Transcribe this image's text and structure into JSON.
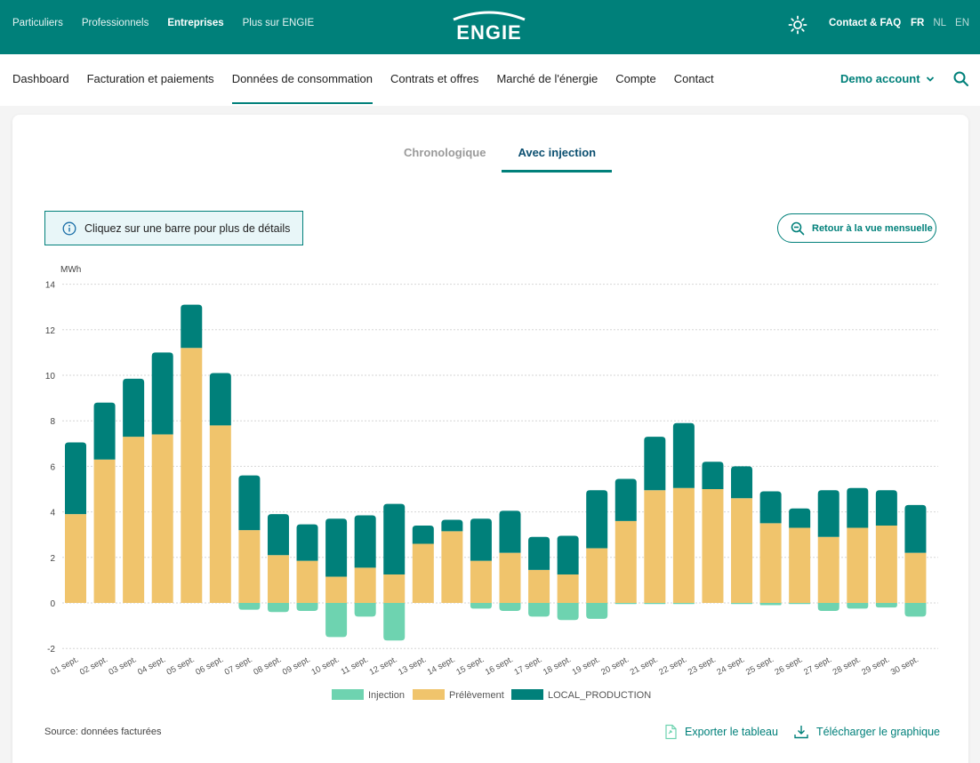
{
  "topnav": {
    "items": [
      {
        "label": "Particuliers"
      },
      {
        "label": "Professionnels"
      },
      {
        "label": "Entreprises"
      },
      {
        "label": "Plus sur ENGIE"
      }
    ],
    "contact": "Contact & FAQ",
    "langs": [
      "FR",
      "NL",
      "EN"
    ],
    "active_lang": "FR",
    "active_item": "Entreprises"
  },
  "brand": {
    "logo_text": "ENGIE",
    "color": "#00807a"
  },
  "mainnav": {
    "items": [
      {
        "label": "Dashboard"
      },
      {
        "label": "Facturation et paiements"
      },
      {
        "label": "Données de consommation"
      },
      {
        "label": "Contrats et offres"
      },
      {
        "label": "Marché de l'énergie"
      },
      {
        "label": "Compte"
      },
      {
        "label": "Contact"
      }
    ],
    "active_item": "Données de consommation",
    "account": "Demo account"
  },
  "tabs": [
    {
      "label": "Chronologique"
    },
    {
      "label": "Avec injection"
    }
  ],
  "active_tab": "Avec injection",
  "info_text": "Cliquez sur une barre pour plus de détails",
  "back_button": "Retour à la vue mensuelle",
  "chart_data": {
    "type": "bar",
    "stacked": true,
    "ylabel": "MWh",
    "ylim": [
      -2,
      14
    ],
    "yticks": [
      -2,
      0,
      2,
      4,
      6,
      8,
      10,
      12,
      14
    ],
    "grid": true,
    "legend_position": "bottom-center",
    "categories": [
      "01 sept.",
      "02 sept.",
      "03 sept.",
      "04 sept.",
      "05 sept.",
      "06 sept.",
      "07 sept.",
      "08 sept.",
      "09 sept.",
      "10 sept.",
      "11 sept.",
      "12 sept.",
      "13 sept.",
      "14 sept.",
      "15 sept.",
      "16 sept.",
      "17 sept.",
      "18 sept.",
      "19 sept.",
      "20 sept.",
      "21 sept.",
      "22 sept.",
      "23 sept.",
      "24 sept.",
      "25 sept.",
      "26 sept.",
      "27 sept.",
      "28 sept.",
      "29 sept.",
      "30 sept."
    ],
    "series": [
      {
        "name": "Injection",
        "color": "#6ed3b0",
        "values": [
          0,
          0,
          0,
          0,
          0,
          0,
          -0.3,
          -0.4,
          -0.35,
          -1.5,
          -0.6,
          -1.65,
          0,
          0,
          -0.25,
          -0.35,
          -0.6,
          -0.75,
          -0.7,
          -0.05,
          -0.05,
          -0.05,
          0,
          -0.05,
          -0.1,
          -0.05,
          -0.35,
          -0.25,
          -0.2,
          -0.6
        ]
      },
      {
        "name": "Prélèvement",
        "color": "#f0c46c",
        "values": [
          3.9,
          6.3,
          7.3,
          7.4,
          11.2,
          7.8,
          3.2,
          2.1,
          1.85,
          1.15,
          1.55,
          1.25,
          2.6,
          3.15,
          1.85,
          2.2,
          1.45,
          1.25,
          2.4,
          3.6,
          4.95,
          5.05,
          5.0,
          4.6,
          3.5,
          3.3,
          2.9,
          3.3,
          3.4,
          2.2
        ]
      },
      {
        "name": "LOCAL_PRODUCTION",
        "color": "#00807a",
        "values": [
          3.15,
          2.5,
          2.55,
          3.6,
          1.9,
          2.3,
          2.4,
          1.8,
          1.6,
          2.55,
          2.3,
          3.1,
          0.8,
          0.5,
          1.85,
          1.85,
          1.45,
          1.7,
          2.55,
          1.85,
          2.35,
          2.85,
          1.2,
          1.4,
          1.4,
          0.85,
          2.05,
          1.75,
          1.55,
          2.1
        ]
      }
    ]
  },
  "source": "Source: données facturées",
  "export_label": "Exporter le tableau",
  "download_label": "Télécharger le graphique"
}
